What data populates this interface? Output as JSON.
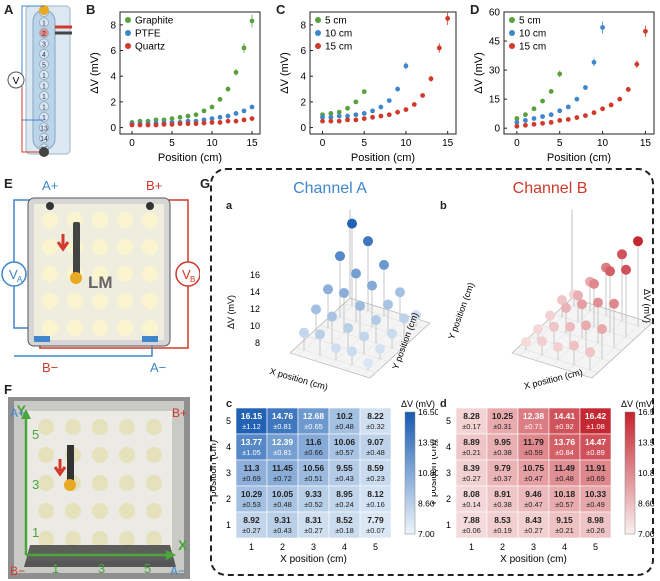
{
  "panel_labels": {
    "A": "A",
    "B": "B",
    "C": "C",
    "D": "D",
    "E": "E",
    "F": "F",
    "G": "G"
  },
  "panel_A": {
    "voltmeter": "V",
    "cells": [
      "0",
      "1",
      "2",
      "3",
      "4",
      "5",
      "1",
      "1",
      "1",
      "1",
      "1",
      "13",
      "14",
      "15"
    ]
  },
  "panel_E": {
    "a_plus": "A+",
    "b_plus": "B+",
    "a_minus": "A−",
    "b_minus": "B−",
    "va": "V",
    "va_sub": "A",
    "vb": "V",
    "vb_sub": "B",
    "lm": "LM"
  },
  "panel_F": {
    "a_plus": "A+",
    "b_plus": "B+",
    "b_minus": "B−",
    "a_minus": "A−",
    "y_axis": "Y",
    "x_axis": "X",
    "y_ticks": [
      "5",
      "3",
      "1"
    ],
    "x_ticks": [
      "1",
      "3",
      "5"
    ]
  },
  "panel_G": {
    "channel_a_title": "Channel A",
    "channel_b_title": "Channel B",
    "sub_a": "a",
    "sub_b": "b",
    "sub_c": "c",
    "sub_d": "d",
    "z_label": "ΔV (mV)",
    "x_label": "X position (cm)",
    "y_label": "Y position (cm)",
    "z_ticks": [
      "16",
      "14",
      "12",
      "10",
      "8"
    ],
    "colorbar_label": "ΔV (mV)",
    "colorbar_ticks": [
      "16.50",
      "13.50",
      "10.80",
      "8.60",
      "7.00"
    ]
  },
  "chart_data": [
    {
      "type": "scatter",
      "id": "B",
      "xlabel": "Position (cm)",
      "ylabel": "ΔV (mV)",
      "xlim": [
        -1.5,
        16
      ],
      "ylim": [
        -0.5,
        9
      ],
      "xticks": [
        0,
        5,
        10,
        15
      ],
      "yticks": [
        0,
        2,
        4,
        6,
        8
      ],
      "legend": "top-left",
      "series": [
        {
          "name": "Graphite",
          "color": "#5aa03c",
          "x": [
            0,
            1,
            2,
            3,
            4,
            5,
            6,
            7,
            8,
            9,
            10,
            11,
            12,
            13,
            14,
            15
          ],
          "y": [
            0.4,
            0.5,
            0.5,
            0.6,
            0.6,
            0.7,
            0.8,
            0.9,
            1.0,
            1.3,
            1.6,
            2.2,
            3.0,
            4.3,
            6.2,
            8.3
          ]
        },
        {
          "name": "PTFE",
          "color": "#3f86cc",
          "x": [
            0,
            1,
            2,
            3,
            4,
            5,
            6,
            7,
            8,
            9,
            10,
            11,
            12,
            13,
            14,
            15
          ],
          "y": [
            0.3,
            0.3,
            0.3,
            0.35,
            0.35,
            0.4,
            0.4,
            0.5,
            0.5,
            0.6,
            0.7,
            0.8,
            0.9,
            1.1,
            1.3,
            1.6
          ]
        },
        {
          "name": "Quartz",
          "color": "#d0392b",
          "x": [
            0,
            1,
            2,
            3,
            4,
            5,
            6,
            7,
            8,
            9,
            10,
            11,
            12,
            13,
            14,
            15
          ],
          "y": [
            0.2,
            0.2,
            0.2,
            0.2,
            0.25,
            0.25,
            0.3,
            0.3,
            0.3,
            0.35,
            0.4,
            0.4,
            0.5,
            0.5,
            0.6,
            0.7
          ]
        }
      ]
    },
    {
      "type": "scatter",
      "id": "C",
      "xlabel": "Position (cm)",
      "ylabel": "ΔV (mV)",
      "xlim": [
        -1.5,
        16
      ],
      "ylim": [
        -0.5,
        9
      ],
      "xticks": [
        0,
        5,
        10,
        15
      ],
      "yticks": [
        0,
        2,
        4,
        6,
        8
      ],
      "legend": "top-left",
      "series": [
        {
          "name": "5 cm",
          "color": "#5aa03c",
          "x": [
            0,
            1,
            2,
            3,
            4,
            5
          ],
          "y": [
            1.0,
            1.1,
            1.2,
            1.5,
            2.0,
            2.8
          ]
        },
        {
          "name": "10 cm",
          "color": "#3f86cc",
          "x": [
            0,
            1,
            2,
            3,
            4,
            5,
            6,
            7,
            8,
            9,
            10
          ],
          "y": [
            0.8,
            0.8,
            0.9,
            0.9,
            1.0,
            1.1,
            1.3,
            1.6,
            2.1,
            3.0,
            4.8
          ]
        },
        {
          "name": "15 cm",
          "color": "#d0392b",
          "x": [
            0,
            1,
            2,
            3,
            4,
            5,
            6,
            7,
            8,
            9,
            10,
            11,
            12,
            13,
            14,
            15
          ],
          "y": [
            0.5,
            0.5,
            0.5,
            0.6,
            0.6,
            0.7,
            0.8,
            0.9,
            1.0,
            1.2,
            1.4,
            1.8,
            2.5,
            3.8,
            6.2,
            8.5
          ]
        }
      ]
    },
    {
      "type": "scatter",
      "id": "D",
      "xlabel": "Position (cm)",
      "ylabel": "ΔV (mV)",
      "xlim": [
        -1.5,
        16
      ],
      "ylim": [
        -3,
        60
      ],
      "xticks": [
        0,
        5,
        10,
        15
      ],
      "yticks": [
        0,
        15,
        30,
        45,
        60
      ],
      "legend": "top-left",
      "series": [
        {
          "name": "5 cm",
          "color": "#5aa03c",
          "x": [
            0,
            1,
            2,
            3,
            4,
            5
          ],
          "y": [
            5,
            7,
            10,
            14,
            19,
            28
          ]
        },
        {
          "name": "10 cm",
          "color": "#3f86cc",
          "x": [
            0,
            1,
            2,
            3,
            4,
            5,
            6,
            7,
            8,
            9,
            10
          ],
          "y": [
            3,
            4,
            5,
            6,
            7,
            9,
            11,
            15,
            21,
            34,
            52
          ]
        },
        {
          "name": "15 cm",
          "color": "#d0392b",
          "x": [
            0,
            1,
            2,
            3,
            4,
            5,
            6,
            7,
            8,
            9,
            10,
            11,
            12,
            13,
            14,
            15
          ],
          "y": [
            1,
            1.5,
            2,
            2.5,
            3,
            4,
            4.5,
            5.5,
            6.5,
            8,
            10,
            12,
            15,
            20,
            33,
            50
          ]
        }
      ]
    },
    {
      "type": "heatmap",
      "id": "G-c",
      "xlabel": "X position (cm)",
      "ylabel": "Y position (cm)",
      "x": [
        1,
        2,
        3,
        4,
        5
      ],
      "y": [
        5,
        4,
        3,
        2,
        1
      ],
      "values": [
        [
          "16.15",
          "14.76",
          "12.68",
          "10.2",
          "8.22"
        ],
        [
          "13.77",
          "12.39",
          "11.6",
          "10.06",
          "9.07"
        ],
        [
          "11.3",
          "11.45",
          "10.56",
          "9.55",
          "8.59"
        ],
        [
          "10.29",
          "10.05",
          "9.33",
          "8.95",
          "8.12"
        ],
        [
          "8.92",
          "9.31",
          "8.31",
          "8.52",
          "7.79"
        ]
      ],
      "errors": [
        "±1.12",
        "±0.81",
        "±0.65",
        "±0.48",
        "±0.32",
        "±1.05",
        "±0.81",
        "±0.66",
        "±0.57",
        "±0.48",
        "±0.69",
        "±0.72",
        "±0.51",
        "±0.43",
        "±0.23",
        "±0.53",
        "±0.48",
        "±0.52",
        "±0.24",
        "±0.16",
        "±0.27",
        "±0.43",
        "±0.27",
        "±0.18",
        "±0.07"
      ],
      "colorbar": {
        "min": 7.0,
        "max": 16.5
      }
    },
    {
      "type": "heatmap",
      "id": "G-d",
      "xlabel": "X position (cm)",
      "ylabel": "Y position (cm)",
      "x": [
        1,
        2,
        3,
        4,
        5
      ],
      "y": [
        5,
        4,
        3,
        2,
        1
      ],
      "values": [
        [
          "8.28",
          "10.25",
          "12.38",
          "14.41",
          "16.42"
        ],
        [
          "8.89",
          "9.95",
          "11.79",
          "13.76",
          "14.47"
        ],
        [
          "8.39",
          "9.79",
          "10.75",
          "11.49",
          "11.91"
        ],
        [
          "8.08",
          "8.91",
          "9.46",
          "10.18",
          "10.33"
        ],
        [
          "7.88",
          "8.53",
          "8.43",
          "9.15",
          "8.98"
        ]
      ],
      "errors": [
        "±0.17",
        "±0.31",
        "±0.71",
        "±0.92",
        "±1.08",
        "±0.21",
        "±0.38",
        "±0.59",
        "±0.84",
        "±0.89",
        "±0.27",
        "±0.37",
        "±0.47",
        "±0.48",
        "±0.69",
        "±0.14",
        "±0.38",
        "±0.47",
        "±0.57",
        "±0.49",
        "±0.06",
        "±0.19",
        "±0.27",
        "±0.21",
        "±0.26"
      ],
      "colorbar": {
        "min": 7.0,
        "max": 16.5
      }
    }
  ]
}
